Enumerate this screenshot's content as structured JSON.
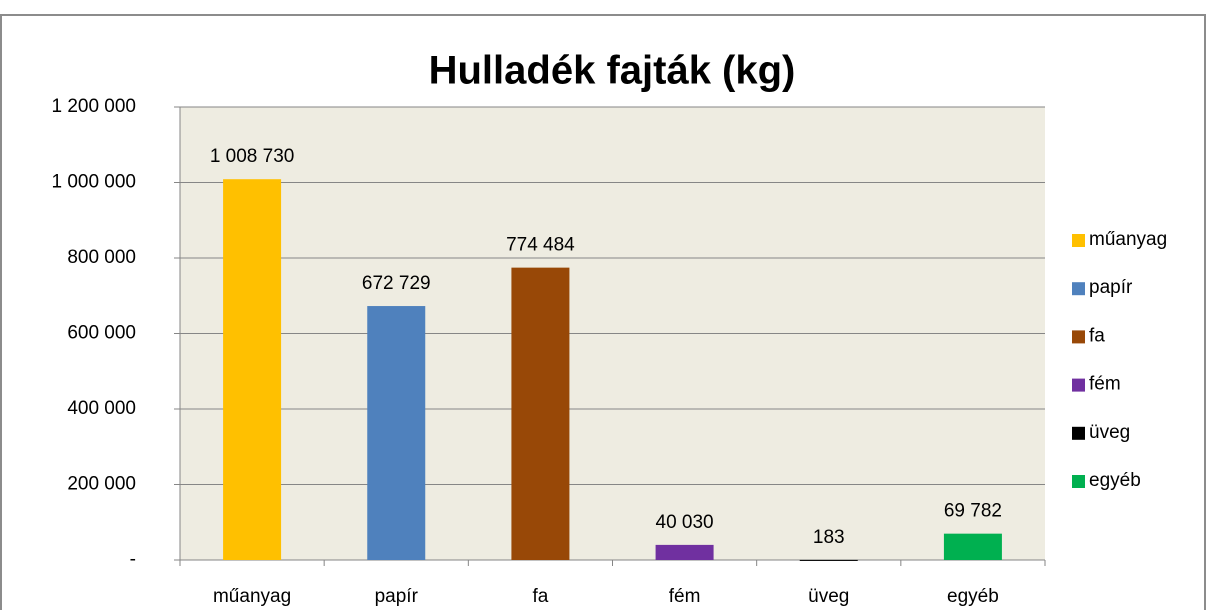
{
  "chart_data": {
    "type": "bar",
    "title": "Hulladék fajták (kg)",
    "categories": [
      "műanyag",
      "papír",
      "fa",
      "fém",
      "üveg",
      "egyéb"
    ],
    "values": [
      1008730,
      672729,
      774484,
      40030,
      183,
      69782
    ],
    "value_labels": [
      "1 008 730",
      "672 729",
      "774 484",
      "40 030",
      "183",
      "69 782"
    ],
    "colors": [
      "#FFC000",
      "#4F81BD",
      "#984807",
      "#7030A0",
      "#000000",
      "#00B050"
    ],
    "ylim": [
      0,
      1200000
    ],
    "yticks": [
      {
        "value": 0,
        "label": "-"
      },
      {
        "value": 200000,
        "label": "200 000"
      },
      {
        "value": 400000,
        "label": "400 000"
      },
      {
        "value": 600000,
        "label": "600 000"
      },
      {
        "value": 800000,
        "label": "800 000"
      },
      {
        "value": 1000000,
        "label": "1 000 000"
      },
      {
        "value": 1200000,
        "label": "1 200 000"
      }
    ],
    "grid": true,
    "legend": "right"
  }
}
